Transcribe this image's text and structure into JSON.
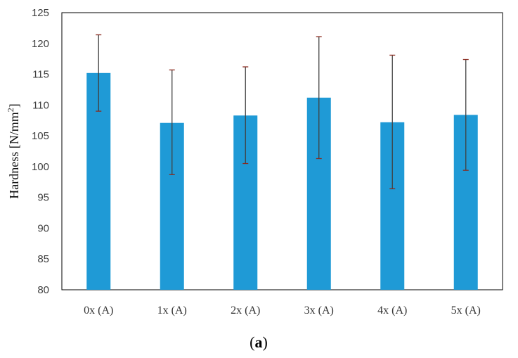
{
  "chart_data": {
    "type": "bar",
    "categories": [
      "0x (A)",
      "1x (A)",
      "2x (A)",
      "3x (A)",
      "4x (A)",
      "5x (A)"
    ],
    "values": [
      115.2,
      107.1,
      108.3,
      111.2,
      107.2,
      108.4
    ],
    "error_low": [
      109.0,
      98.7,
      100.5,
      101.3,
      96.4,
      99.4
    ],
    "error_high": [
      121.4,
      115.7,
      116.2,
      121.1,
      118.1,
      117.4
    ],
    "ylabel_text": "Hardness [N/mm",
    "ylabel_sup": "2",
    "ylabel_end": "]",
    "xlabel": "",
    "ylim": [
      80,
      125
    ],
    "yticks": [
      "80",
      "85",
      "90",
      "95",
      "100",
      "105",
      "110",
      "115",
      "120",
      "125"
    ],
    "grid": false,
    "bar_color": "#1f9ad6",
    "error_color": "#404040",
    "error_cap_color": "#8b2a1e"
  },
  "caption": {
    "open": "(",
    "letter": "a",
    "close": ")"
  }
}
